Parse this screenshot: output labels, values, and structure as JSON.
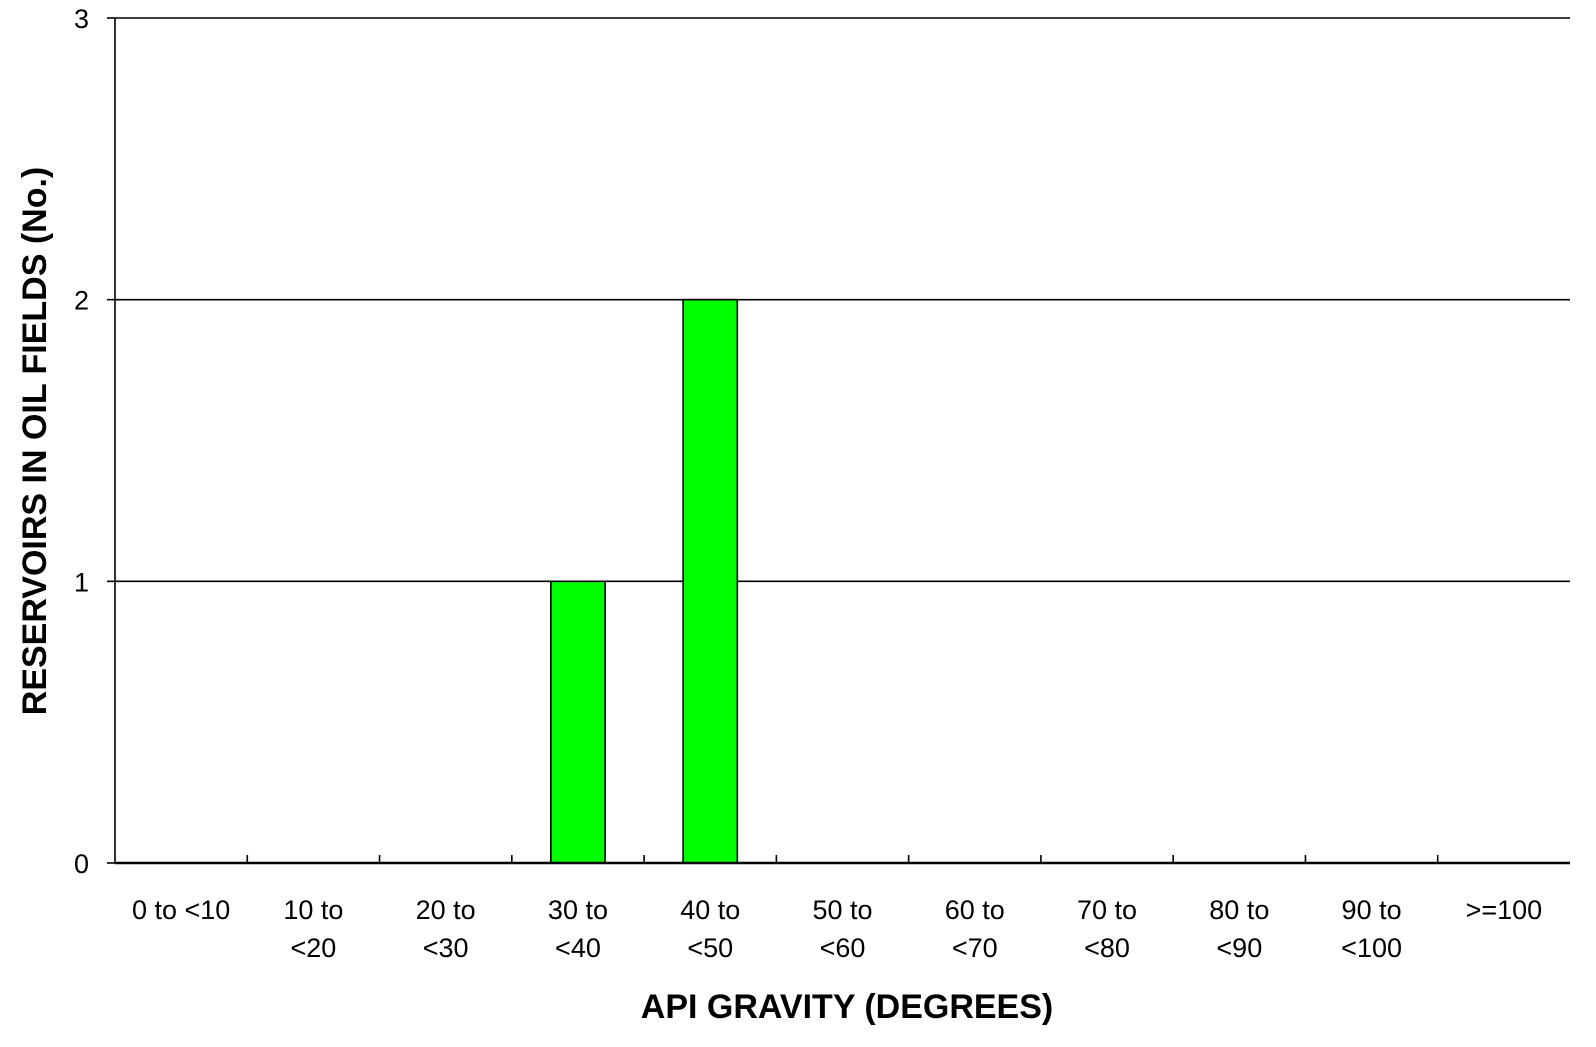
{
  "chart_data": {
    "type": "bar",
    "title": "",
    "xlabel": "API GRAVITY (DEGREES)",
    "ylabel": "RESERVOIRS IN OIL FIELDS (No.)",
    "categories": [
      [
        "0 to <10"
      ],
      [
        "10 to",
        "<20"
      ],
      [
        "20 to",
        "<30"
      ],
      [
        "30 to",
        "<40"
      ],
      [
        "40 to",
        "<50"
      ],
      [
        "50 to",
        "<60"
      ],
      [
        "60 to",
        "<70"
      ],
      [
        "70 to",
        "<80"
      ],
      [
        "80 to",
        "<90"
      ],
      [
        "90 to",
        "<100"
      ],
      [
        ">=100"
      ]
    ],
    "values": [
      0,
      0,
      0,
      1,
      2,
      0,
      0,
      0,
      0,
      0,
      0
    ],
    "ylim": [
      0,
      3
    ],
    "yticks": [
      0,
      1,
      2,
      3
    ],
    "grid": true,
    "bar_color": "#00ff00",
    "bar_edge_color": "#000000"
  }
}
